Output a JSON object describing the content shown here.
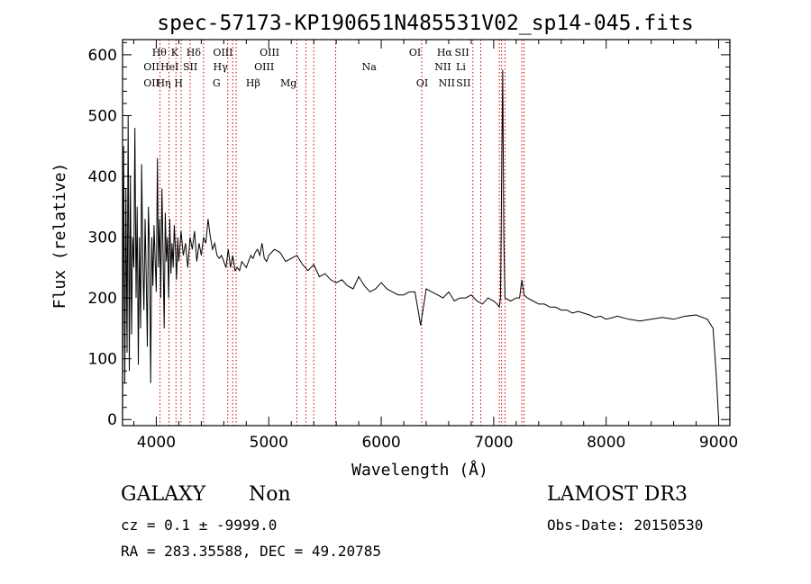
{
  "chart_data": {
    "type": "line",
    "title": "spec-57173-KP190651N485531V02_sp14-045.fits",
    "xlabel": "Wavelength (Å)",
    "ylabel": "Flux (relative)",
    "xlim": [
      3700,
      9100
    ],
    "ylim": [
      -10,
      625
    ],
    "xticks": [
      4000,
      5000,
      6000,
      7000,
      8000,
      9000
    ],
    "yticks": [
      0,
      100,
      200,
      300,
      400,
      500,
      600
    ],
    "grid": false,
    "series": [
      {
        "name": "spectrum",
        "x": [
          3700,
          3710,
          3720,
          3730,
          3740,
          3750,
          3760,
          3770,
          3780,
          3790,
          3800,
          3810,
          3820,
          3830,
          3840,
          3850,
          3860,
          3870,
          3880,
          3890,
          3900,
          3910,
          3920,
          3930,
          3940,
          3950,
          3960,
          3970,
          3980,
          3990,
          4000,
          4010,
          4020,
          4030,
          4040,
          4050,
          4060,
          4070,
          4080,
          4090,
          4100,
          4110,
          4120,
          4130,
          4140,
          4150,
          4160,
          4170,
          4180,
          4190,
          4200,
          4220,
          4240,
          4260,
          4280,
          4300,
          4320,
          4340,
          4360,
          4380,
          4400,
          4420,
          4440,
          4460,
          4480,
          4500,
          4520,
          4540,
          4560,
          4580,
          4600,
          4620,
          4640,
          4660,
          4680,
          4700,
          4720,
          4740,
          4760,
          4780,
          4800,
          4820,
          4840,
          4860,
          4880,
          4900,
          4920,
          4940,
          4960,
          4980,
          5000,
          5050,
          5100,
          5150,
          5200,
          5250,
          5300,
          5350,
          5400,
          5450,
          5500,
          5550,
          5600,
          5650,
          5700,
          5750,
          5800,
          5850,
          5900,
          5950,
          6000,
          6050,
          6100,
          6150,
          6200,
          6250,
          6300,
          6350,
          6400,
          6450,
          6500,
          6550,
          6600,
          6650,
          6700,
          6750,
          6800,
          6850,
          6900,
          6950,
          7000,
          7030,
          7050,
          7060,
          7070,
          7080,
          7090,
          7100,
          7150,
          7200,
          7230,
          7250,
          7270,
          7300,
          7350,
          7400,
          7450,
          7500,
          7550,
          7600,
          7650,
          7700,
          7750,
          7800,
          7850,
          7900,
          7950,
          8000,
          8100,
          8200,
          8300,
          8400,
          8500,
          8600,
          8700,
          8800,
          8900,
          8950,
          8980,
          9000
        ],
        "y": [
          0,
          450,
          60,
          380,
          110,
          500,
          80,
          400,
          140,
          300,
          250,
          480,
          200,
          350,
          90,
          300,
          150,
          420,
          260,
          180,
          330,
          240,
          120,
          350,
          280,
          60,
          300,
          220,
          320,
          260,
          210,
          430,
          250,
          330,
          200,
          380,
          280,
          150,
          340,
          260,
          300,
          200,
          330,
          240,
          290,
          250,
          320,
          280,
          230,
          300,
          260,
          310,
          270,
          290,
          250,
          300,
          280,
          310,
          260,
          290,
          270,
          300,
          290,
          330,
          300,
          280,
          290,
          270,
          265,
          270,
          260,
          250,
          280,
          250,
          270,
          245,
          250,
          245,
          260,
          255,
          250,
          260,
          270,
          265,
          275,
          280,
          270,
          290,
          265,
          260,
          270,
          280,
          275,
          260,
          265,
          270,
          255,
          245,
          255,
          235,
          240,
          230,
          225,
          230,
          220,
          215,
          235,
          220,
          210,
          215,
          225,
          215,
          210,
          205,
          205,
          210,
          210,
          155,
          215,
          210,
          205,
          200,
          210,
          195,
          200,
          200,
          205,
          195,
          190,
          200,
          195,
          190,
          185,
          200,
          380,
          575,
          300,
          200,
          195,
          200,
          200,
          230,
          205,
          200,
          195,
          190,
          190,
          185,
          185,
          180,
          180,
          175,
          178,
          175,
          172,
          168,
          170,
          165,
          170,
          165,
          162,
          165,
          168,
          165,
          170,
          172,
          165,
          150,
          70,
          0
        ]
      }
    ],
    "line_labels": [
      {
        "name": "OII",
        "wavelength": 3727,
        "row": 2
      },
      {
        "name": "OII",
        "wavelength": 3727,
        "row": 3
      },
      {
        "name": "Hθ",
        "wavelength": 3797,
        "row": 1
      },
      {
        "name": "Hη",
        "wavelength": 3835,
        "row": 3
      },
      {
        "name": "HeI",
        "wavelength": 3889,
        "row": 2
      },
      {
        "name": "K",
        "wavelength": 3934,
        "row": 1
      },
      {
        "name": "H",
        "wavelength": 3968,
        "row": 3
      },
      {
        "name": "Hδ",
        "wavelength": 4102,
        "row": 1
      },
      {
        "name": "SII",
        "wavelength": 4072,
        "row": 2
      },
      {
        "name": "OIII",
        "wavelength": 4363,
        "row": 1
      },
      {
        "name": "Hγ",
        "wavelength": 4340,
        "row": 2
      },
      {
        "name": "G",
        "wavelength": 4305,
        "row": 3
      },
      {
        "name": "Hβ",
        "wavelength": 4861,
        "row": 3
      },
      {
        "name": "OIII",
        "wavelength": 5007,
        "row": 1
      },
      {
        "name": "OIII",
        "wavelength": 4959,
        "row": 2
      },
      {
        "name": "Mg",
        "wavelength": 5175,
        "row": 3
      },
      {
        "name": "Na",
        "wavelength": 5893,
        "row": 2
      },
      {
        "name": "OI",
        "wavelength": 6300,
        "row": 1
      },
      {
        "name": "OI",
        "wavelength": 6364,
        "row": 3
      },
      {
        "name": "Hα",
        "wavelength": 6563,
        "row": 1
      },
      {
        "name": "NII",
        "wavelength": 6548,
        "row": 2
      },
      {
        "name": "NII",
        "wavelength": 6583,
        "row": 3
      },
      {
        "name": "SII",
        "wavelength": 6717,
        "row": 1
      },
      {
        "name": "Li",
        "wavelength": 6708,
        "row": 2
      },
      {
        "name": "SII",
        "wavelength": 6731,
        "row": 3
      }
    ],
    "marker_lines": [
      4033,
      4113,
      4175,
      4220,
      4300,
      4420,
      4635,
      4680,
      4710,
      5250,
      5330,
      5400,
      5595,
      6360,
      6815,
      6885,
      7050,
      7070,
      7100,
      7250,
      7270
    ]
  },
  "info": {
    "class": "GALAXY",
    "subclass": "Non",
    "survey": "LAMOST DR3",
    "cz_line": "cz = 0.1 ± -9999.0",
    "obs_date": "Obs-Date: 20150530",
    "coords": "RA = 283.35588, DEC =  49.20785"
  },
  "colors": {
    "axis": "#000000",
    "spectrum": "#000000",
    "marker": "#cc0000"
  }
}
